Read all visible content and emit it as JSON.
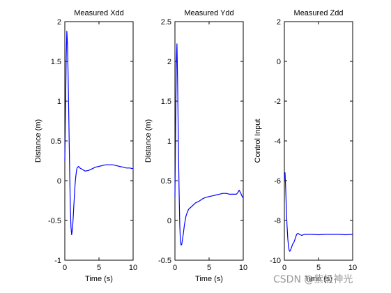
{
  "chart_data": [
    {
      "type": "line",
      "title": "Measured Xdd",
      "xlabel": "Time (s)",
      "ylabel": "Distance (m)",
      "xlim": [
        0,
        10
      ],
      "ylim": [
        -1,
        2
      ],
      "xticks": [
        0,
        5,
        10
      ],
      "yticks": [
        -1,
        -0.5,
        0,
        0.5,
        1,
        1.5,
        2
      ],
      "grid": false,
      "series": [
        {
          "color": "#0000ff",
          "x": [
            0,
            0.1,
            0.2,
            0.3,
            0.4,
            0.5,
            0.6,
            0.7,
            0.8,
            0.9,
            1.0,
            1.1,
            1.2,
            1.3,
            1.4,
            1.5,
            1.6,
            1.7,
            1.8,
            1.9,
            2.0,
            2.2,
            2.4,
            2.6,
            2.8,
            3.0,
            3.5,
            4.0,
            4.5,
            5.0,
            5.5,
            6.0,
            6.5,
            7.0,
            7.5,
            8.0,
            8.5,
            9.0,
            9.5,
            10.0
          ],
          "y": [
            0.25,
            0.9,
            1.55,
            1.88,
            1.7,
            1.25,
            0.7,
            0.15,
            -0.3,
            -0.58,
            -0.68,
            -0.62,
            -0.5,
            -0.35,
            -0.2,
            -0.05,
            0.05,
            0.12,
            0.16,
            0.17,
            0.18,
            0.16,
            0.15,
            0.14,
            0.13,
            0.12,
            0.13,
            0.15,
            0.17,
            0.18,
            0.19,
            0.2,
            0.2,
            0.2,
            0.19,
            0.18,
            0.17,
            0.16,
            0.16,
            0.15
          ]
        }
      ]
    },
    {
      "type": "line",
      "title": "Measured Ydd",
      "xlabel": "Time (s)",
      "ylabel": "Distance (m)",
      "xlim": [
        0,
        10
      ],
      "ylim": [
        -0.5,
        2.5
      ],
      "xticks": [
        0,
        5,
        10
      ],
      "yticks": [
        -0.5,
        0,
        0.5,
        1,
        1.5,
        2,
        2.5
      ],
      "grid": false,
      "series": [
        {
          "color": "#0000ff",
          "x": [
            0,
            0.1,
            0.2,
            0.3,
            0.4,
            0.5,
            0.6,
            0.7,
            0.8,
            0.9,
            1.0,
            1.2,
            1.4,
            1.6,
            1.8,
            2.0,
            2.5,
            3.0,
            3.5,
            4.0,
            4.5,
            5.0,
            5.5,
            6.0,
            6.5,
            7.0,
            7.5,
            8.0,
            8.5,
            9.0,
            9.2,
            9.4,
            9.6,
            9.8,
            10.0
          ],
          "y": [
            0.3,
            1.2,
            2.0,
            2.22,
            1.7,
            1.0,
            0.4,
            -0.05,
            -0.25,
            -0.31,
            -0.3,
            -0.18,
            -0.05,
            0.05,
            0.1,
            0.14,
            0.18,
            0.22,
            0.24,
            0.27,
            0.29,
            0.3,
            0.31,
            0.32,
            0.33,
            0.34,
            0.34,
            0.33,
            0.33,
            0.33,
            0.35,
            0.38,
            0.35,
            0.31,
            0.28
          ]
        }
      ]
    },
    {
      "type": "line",
      "title": "Measured Zdd",
      "xlabel": "Time (s)",
      "ylabel": "Control Input",
      "xlim": [
        0,
        10
      ],
      "ylim": [
        -10,
        2
      ],
      "xticks": [
        0,
        5,
        10
      ],
      "yticks": [
        -10,
        -8,
        -6,
        -4,
        -2,
        0,
        2
      ],
      "grid": false,
      "series": [
        {
          "color": "#0000ff",
          "x": [
            0,
            0.1,
            0.2,
            0.3,
            0.4,
            0.5,
            0.6,
            0.7,
            0.8,
            0.9,
            1.0,
            1.1,
            1.2,
            1.4,
            1.6,
            1.8,
            2.0,
            2.2,
            2.5,
            3.0,
            4.0,
            5.0,
            6.0,
            7.0,
            8.0,
            9.0,
            10.0
          ],
          "y": [
            -5.9,
            -5.6,
            -6.5,
            -7.5,
            -8.3,
            -8.9,
            -9.3,
            -9.5,
            -9.55,
            -9.5,
            -9.4,
            -9.3,
            -9.2,
            -9.1,
            -8.9,
            -8.7,
            -8.65,
            -8.7,
            -8.75,
            -8.7,
            -8.7,
            -8.72,
            -8.7,
            -8.7,
            -8.7,
            -8.72,
            -8.7
          ]
        }
      ]
    }
  ],
  "watermark": "CSDN @紫极神光"
}
